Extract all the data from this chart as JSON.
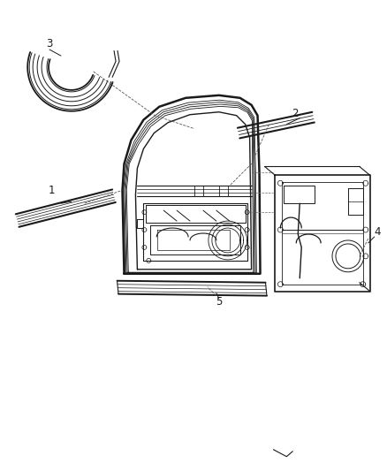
{
  "bg_color": "#ffffff",
  "line_color": "#1a1a1a",
  "gray_color": "#888888",
  "light_gray": "#cccccc",
  "figsize": [
    4.38,
    5.33
  ],
  "dpi": 100
}
